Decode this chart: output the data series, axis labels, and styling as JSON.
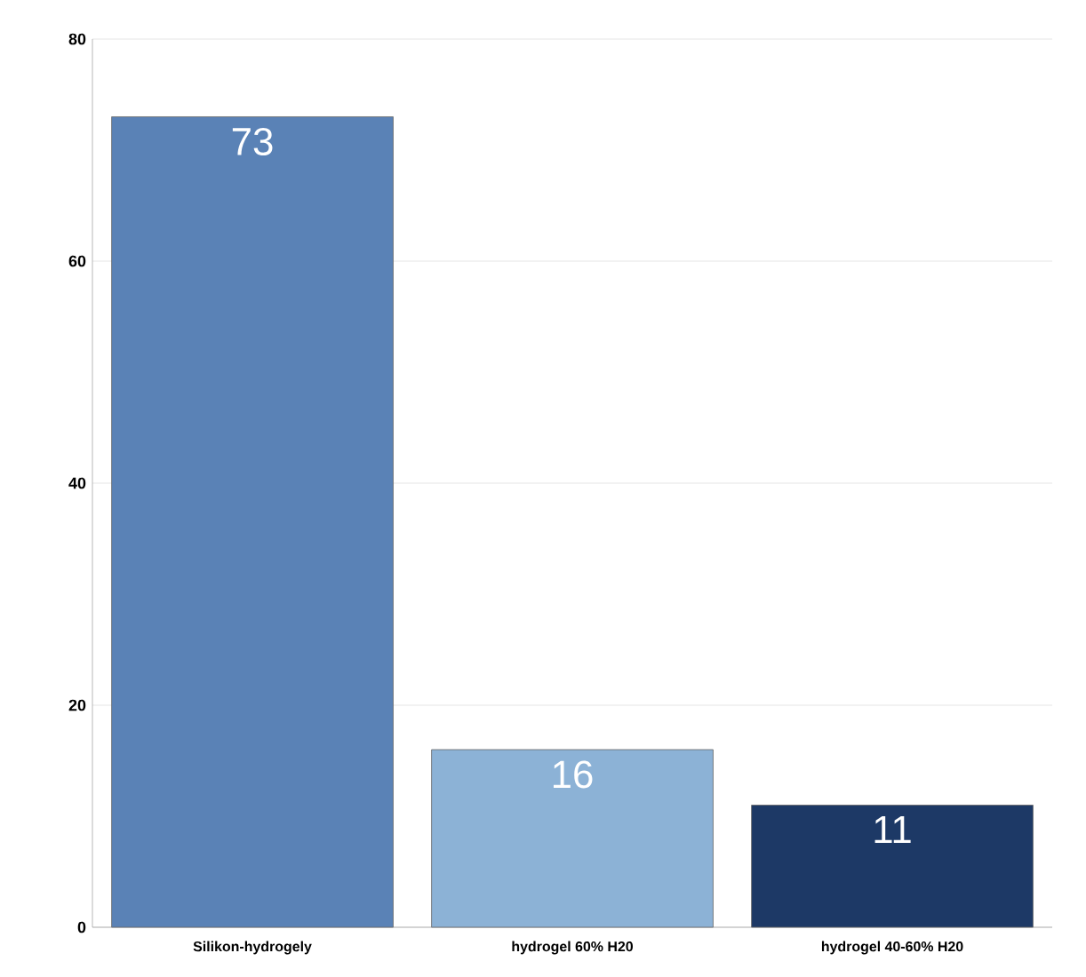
{
  "chart_data": {
    "type": "bar",
    "categories": [
      "Silikon-hydrogely",
      "hydrogel 60% H20",
      "hydrogel 40-60% H20"
    ],
    "values": [
      73,
      16,
      11
    ],
    "colors": [
      "#5a82b6",
      "#8cb2d6",
      "#1d3966"
    ],
    "ylim": [
      0,
      80
    ],
    "yticks": [
      0,
      20,
      40,
      60,
      80
    ],
    "grid": "y",
    "data_labels": true
  }
}
